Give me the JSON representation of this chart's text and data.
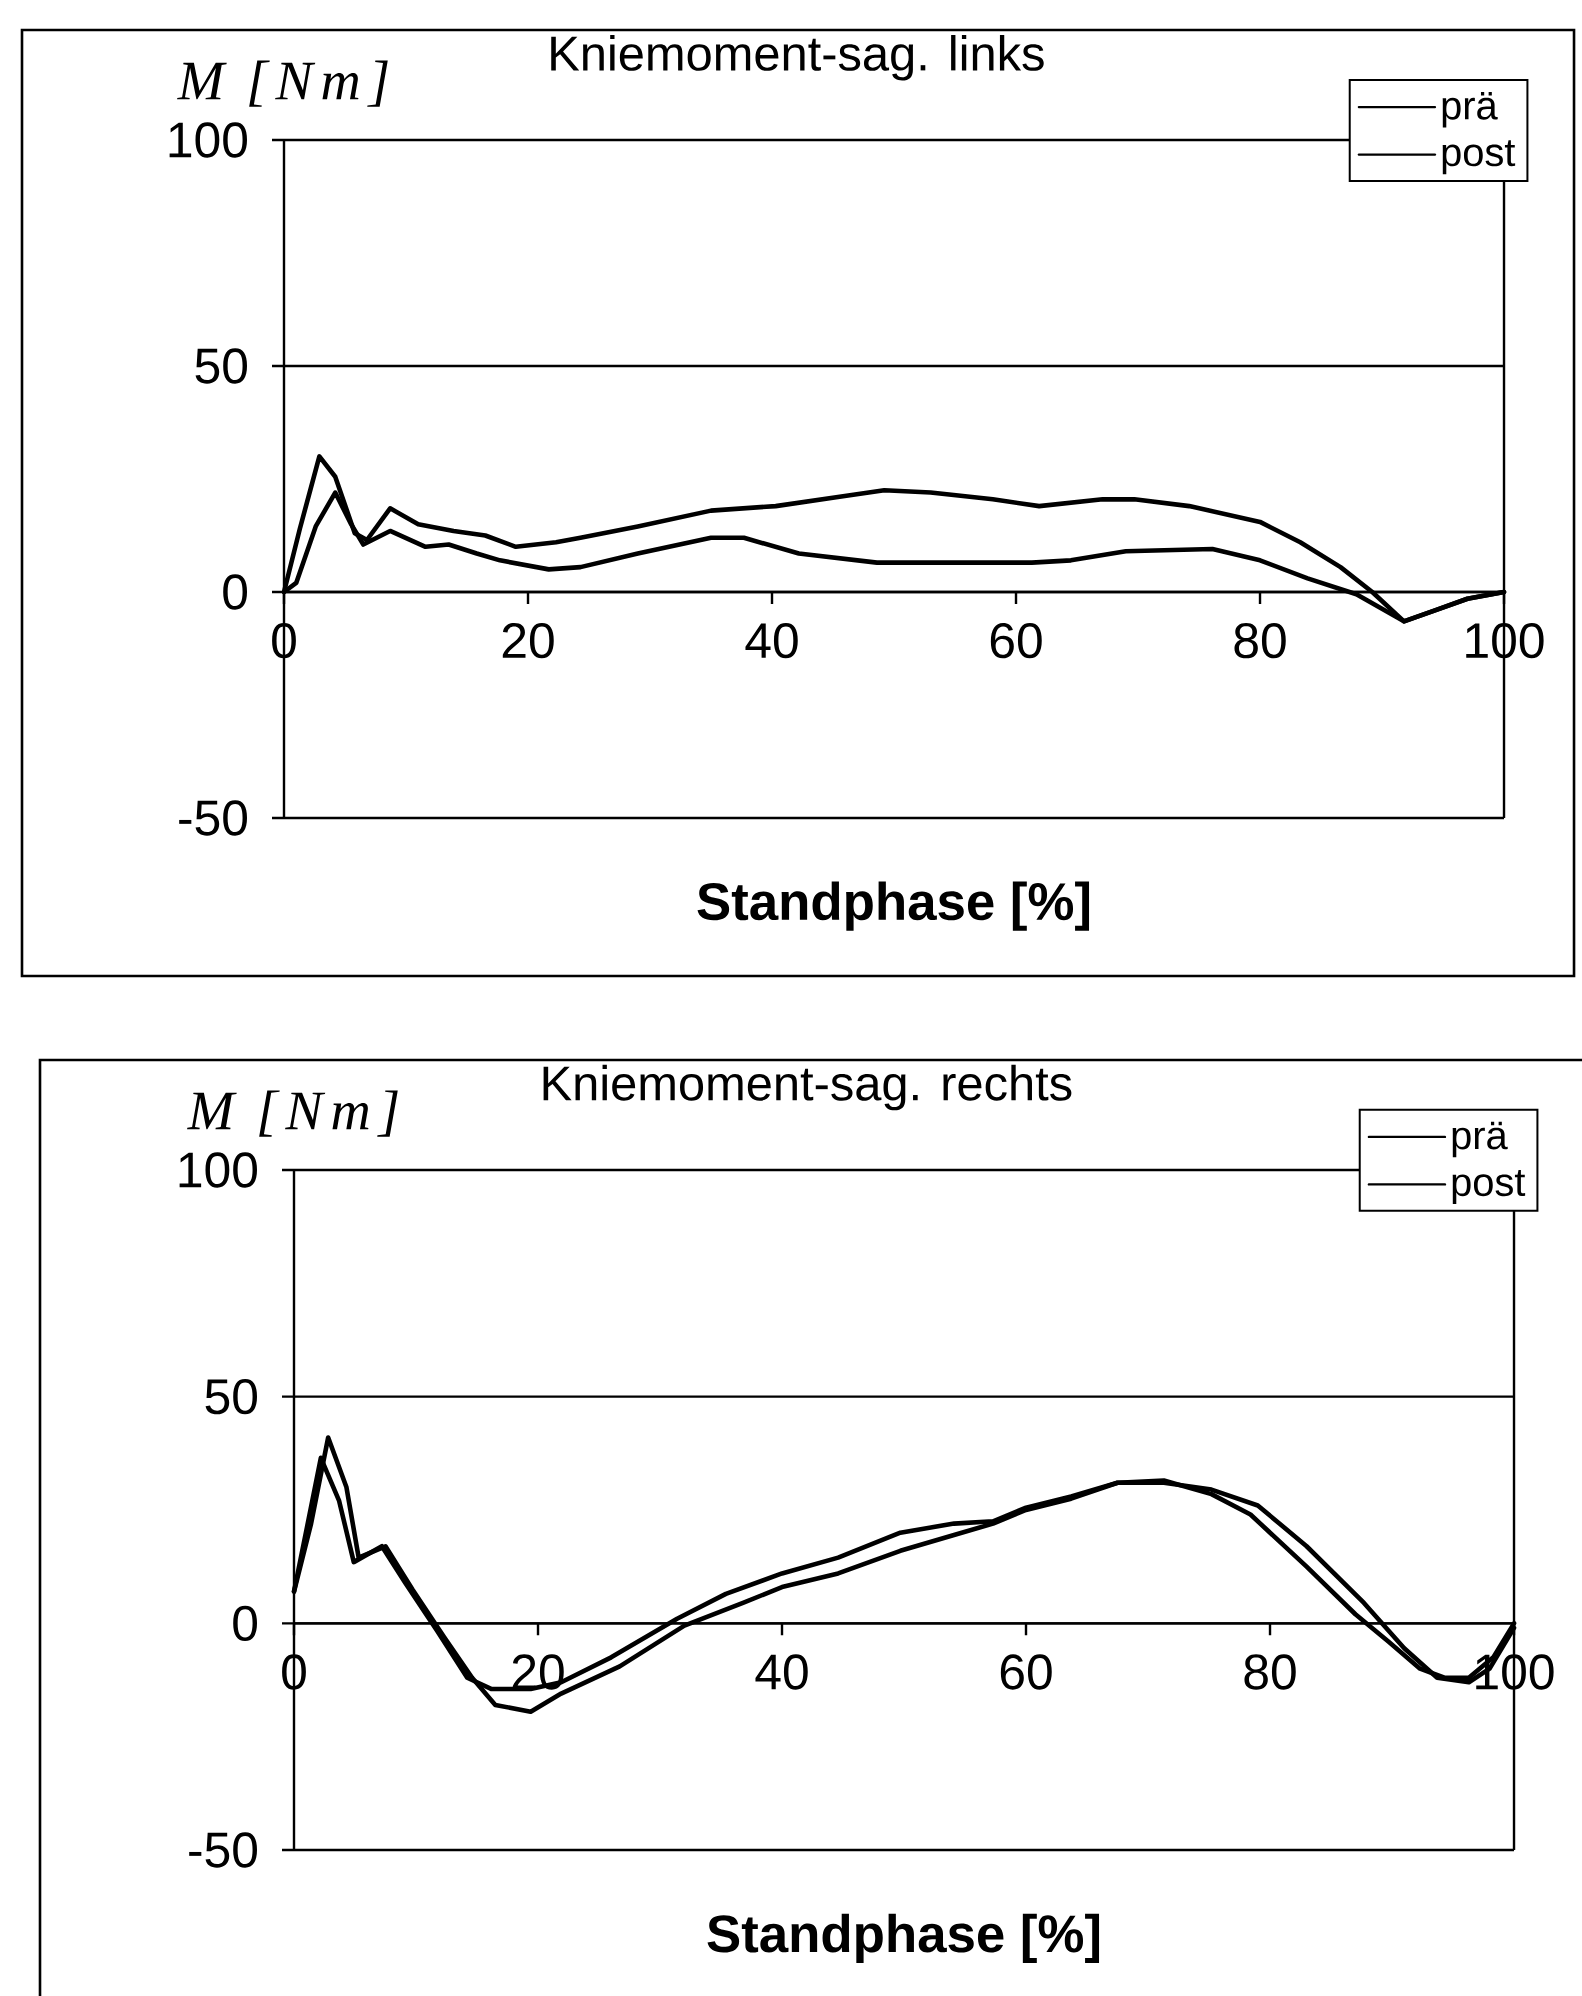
{
  "chart_data": [
    {
      "type": "line",
      "title": "Kniemoment-sag. links",
      "xlabel": "Standphase [%]",
      "ylabel": "M [Nm]",
      "xlim": [
        0,
        100
      ],
      "xticks": [
        0,
        20,
        40,
        60,
        80,
        100
      ],
      "ylim": [
        -50,
        100
      ],
      "yticks": [
        -50,
        0,
        50,
        100
      ],
      "grid": "y",
      "legend": "top right",
      "line_style": "solid",
      "series": [
        {
          "name": "prä",
          "color": "#000000",
          "x": [
            0,
            1.3,
            2.9,
            4.2,
            5.8,
            6.8,
            8.7,
            11,
            13.9,
            16.5,
            19,
            22.3,
            24.3,
            29,
            35,
            40.3,
            45.4,
            49.2,
            53,
            58.1,
            61.9,
            67.1,
            69.7,
            74.2,
            80,
            83.3,
            86.6,
            89.2,
            91.8,
            94.4,
            97,
            100
          ],
          "values": [
            0,
            14,
            30,
            25.5,
            13,
            11.5,
            18.5,
            15,
            13.5,
            12.5,
            10,
            11,
            12,
            14.5,
            18,
            19,
            21,
            22.5,
            22,
            20.5,
            19,
            20.5,
            20.5,
            19,
            15.5,
            11,
            5.5,
            0,
            -6.5,
            -4,
            -1.5,
            0
          ]
        },
        {
          "name": "post",
          "color": "#000000",
          "x": [
            0,
            1,
            2.6,
            4.2,
            5.5,
            6.5,
            8.7,
            11.6,
            13.5,
            15.8,
            17.7,
            21.7,
            24.3,
            29,
            35,
            37.7,
            42.2,
            48.6,
            51.7,
            61.3,
            64.5,
            69,
            76.1,
            80,
            83.9,
            87.9,
            91.8,
            94.4,
            97,
            100
          ],
          "values": [
            0,
            2,
            14.5,
            22,
            15,
            10.5,
            13.5,
            10,
            10.5,
            8.5,
            7,
            5,
            5.5,
            8.5,
            12,
            12,
            8.5,
            6.5,
            6.5,
            6.5,
            7,
            9,
            9.5,
            7,
            3,
            -0.5,
            -6.5,
            -4,
            -1.5,
            0
          ]
        }
      ]
    },
    {
      "type": "line",
      "title": "Kniemoment-sag. rechts",
      "xlabel": "Standphase [%]",
      "ylabel": "M [Nm]",
      "xlim": [
        0,
        100
      ],
      "xticks": [
        0,
        20,
        40,
        60,
        80,
        100
      ],
      "ylim": [
        -50,
        100
      ],
      "yticks": [
        -50,
        0,
        50,
        100
      ],
      "grid": "y",
      "legend": "top right",
      "line_style": "solid",
      "series": [
        {
          "name": "prä",
          "color": "#000000",
          "x": [
            0,
            1.4,
            2.8,
            4.3,
            5.3,
            7.5,
            9.7,
            12.3,
            14.6,
            16.5,
            19.4,
            21.9,
            26.7,
            32,
            36.8,
            40,
            44.6,
            49.7,
            54.1,
            57.3,
            60,
            63.7,
            67.5,
            71.3,
            75.2,
            79,
            83,
            87.7,
            91,
            93.7,
            96.3,
            98,
            100
          ],
          "values": [
            7,
            22,
            41,
            30,
            14.5,
            17,
            7.5,
            -3,
            -12,
            -18,
            -19.5,
            -15.5,
            -9.5,
            -0.5,
            4.5,
            8,
            11,
            16,
            19.5,
            22,
            25,
            27.5,
            31,
            31,
            29.5,
            26,
            17,
            4.5,
            -5.5,
            -12,
            -13,
            -10,
            -1
          ]
        },
        {
          "name": "post",
          "color": "#000000",
          "x": [
            0,
            1.2,
            2.2,
            3.7,
            4.9,
            7.2,
            9.1,
            11.7,
            14.2,
            16.2,
            19.4,
            21.9,
            26,
            31.4,
            35.4,
            40,
            44.6,
            49.7,
            54.1,
            57.3,
            60,
            63.7,
            67.5,
            71.3,
            75.2,
            78.4,
            83,
            87,
            89.7,
            92.3,
            94.3,
            96.3,
            98.3,
            100
          ],
          "values": [
            7,
            23,
            36.5,
            27,
            13.5,
            17,
            9,
            -1.5,
            -12,
            -14.5,
            -14.5,
            -13,
            -7.5,
            1,
            6.5,
            11,
            14.5,
            20,
            22,
            22.5,
            25.5,
            28,
            31,
            31.5,
            28.5,
            24,
            12.5,
            2,
            -4,
            -10,
            -12,
            -12,
            -7.5,
            0
          ]
        }
      ]
    }
  ]
}
